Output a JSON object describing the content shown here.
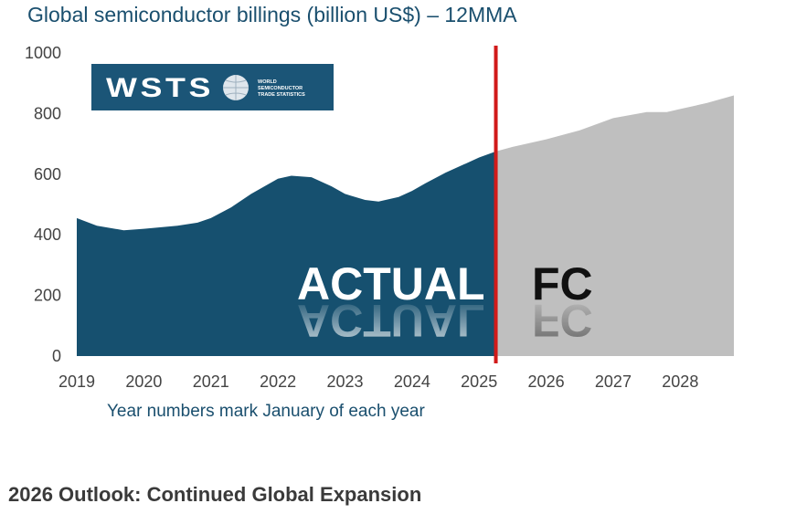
{
  "chart_data": {
    "type": "area",
    "title": "Global semiconductor billings (billion US$) – 12MMA",
    "xlabel": "Year numbers mark January of each year",
    "ylabel": "",
    "xlim": [
      2019,
      2028.8
    ],
    "ylim": [
      0,
      1000
    ],
    "x_ticks": [
      "2019",
      "2020",
      "2021",
      "2022",
      "2023",
      "2024",
      "2025",
      "2026",
      "2027",
      "2028"
    ],
    "y_ticks": [
      "0",
      "200",
      "400",
      "600",
      "800",
      "1000"
    ],
    "grid": false,
    "divider_x": 2025.25,
    "series": [
      {
        "name": "ACTUAL",
        "color": "#16506f",
        "x": [
          2019.0,
          2019.3,
          2019.7,
          2020.0,
          2020.5,
          2020.8,
          2021.0,
          2021.3,
          2021.6,
          2022.0,
          2022.2,
          2022.5,
          2022.8,
          2023.0,
          2023.3,
          2023.5,
          2023.8,
          2024.0,
          2024.2,
          2024.5,
          2024.8,
          2025.0,
          2025.25
        ],
        "values": [
          455,
          430,
          415,
          420,
          430,
          440,
          455,
          490,
          535,
          585,
          595,
          590,
          560,
          535,
          515,
          510,
          525,
          545,
          570,
          605,
          635,
          655,
          675
        ]
      },
      {
        "name": "FC",
        "color": "#bfbfbf",
        "x": [
          2025.25,
          2025.5,
          2026.0,
          2026.5,
          2027.0,
          2027.5,
          2027.8,
          2028.0,
          2028.4,
          2028.8
        ],
        "values": [
          675,
          690,
          715,
          745,
          785,
          805,
          805,
          815,
          835,
          860
        ]
      }
    ],
    "labels": [
      "ACTUAL",
      "FC"
    ],
    "logo": {
      "text": "WSTS",
      "subtitle": [
        "WORLD",
        "SEMICONDUCTOR",
        "TRADE STATISTICS"
      ]
    }
  },
  "caption": "2026 Outlook: Continued Global Expansion"
}
